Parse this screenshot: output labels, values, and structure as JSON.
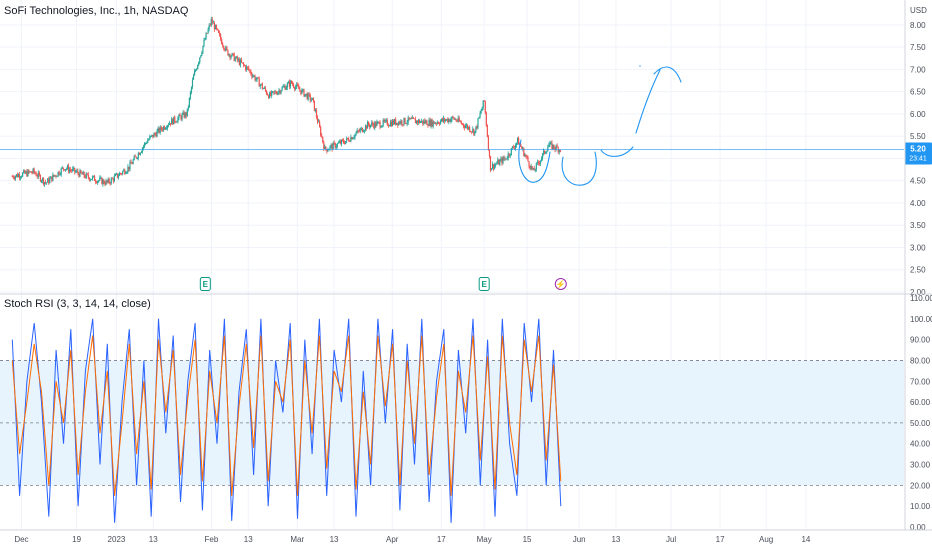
{
  "price_pane": {
    "symbol_line": "SoFi Technologies, Inc., 1h, NASDAQ",
    "currency": "USD",
    "last_price": "5.20",
    "countdown": "23:41",
    "earnings_marker": "E",
    "dividend_marker": "⚡"
  },
  "indicator_pane": {
    "title": "Stoch RSI (3, 3, 14, 14, close)"
  },
  "colors": {
    "up": "#26a69a",
    "down": "#ef5350",
    "k_line": "#2962ff",
    "d_line": "#ff6d00",
    "band_fill": "#e3f2fd",
    "drawing": "#2196f3",
    "price_line": "#2196f3",
    "badge": "#2196f3",
    "earnings": "#089981",
    "dividend": "#9c27b0"
  },
  "chart_data": [
    {
      "type": "candlestick",
      "title": "SoFi Technologies, Inc., 1h, NASDAQ",
      "ylabel": "USD",
      "ylim": [
        2.0,
        8.2
      ],
      "y_ticks": [
        "8.00",
        "7.50",
        "7.00",
        "6.50",
        "6.00",
        "5.50",
        "5.00",
        "4.50",
        "4.00",
        "3.50",
        "3.00",
        "2.50",
        "2.00"
      ],
      "x_ticks": [
        "Dec",
        "19",
        "2023",
        "13",
        "Feb",
        "13",
        "Mar",
        "13",
        "Apr",
        "17",
        "May",
        "15",
        "Jun",
        "13",
        "Jul",
        "17",
        "Aug",
        "14"
      ],
      "grid": true,
      "close_path": [
        [
          "2022-11-28",
          4.6
        ],
        [
          "2022-12-05",
          4.7
        ],
        [
          "2022-12-09",
          4.45
        ],
        [
          "2022-12-15",
          4.8
        ],
        [
          "2022-12-22",
          4.6
        ],
        [
          "2022-12-29",
          4.45
        ],
        [
          "2023-01-05",
          4.8
        ],
        [
          "2023-01-11",
          5.4
        ],
        [
          "2023-01-18",
          5.8
        ],
        [
          "2023-01-24",
          6.0
        ],
        [
          "2023-01-26",
          6.8
        ],
        [
          "2023-01-30",
          7.7
        ],
        [
          "2023-02-01",
          8.1
        ],
        [
          "2023-02-06",
          7.4
        ],
        [
          "2023-02-13",
          7.0
        ],
        [
          "2023-02-20",
          6.4
        ],
        [
          "2023-02-27",
          6.7
        ],
        [
          "2023-03-06",
          6.3
        ],
        [
          "2023-03-10",
          5.2
        ],
        [
          "2023-03-17",
          5.4
        ],
        [
          "2023-03-24",
          5.75
        ],
        [
          "2023-03-31",
          5.8
        ],
        [
          "2023-04-07",
          5.85
        ],
        [
          "2023-04-14",
          5.8
        ],
        [
          "2023-04-21",
          5.9
        ],
        [
          "2023-04-28",
          5.6
        ],
        [
          "2023-05-01",
          6.3
        ],
        [
          "2023-05-03",
          4.8
        ],
        [
          "2023-05-08",
          5.0
        ],
        [
          "2023-05-12",
          5.4
        ],
        [
          "2023-05-17",
          4.7
        ],
        [
          "2023-05-22",
          5.3
        ],
        [
          "2023-05-26",
          5.2
        ]
      ],
      "last_value": 5.2,
      "horizontal_line": 5.2,
      "event_markers": [
        {
          "label": "E",
          "date": "2023-01-30"
        },
        {
          "label": "E",
          "date": "2023-05-01"
        },
        {
          "label": "⚡",
          "date": "2023-05-26"
        }
      ]
    },
    {
      "type": "line",
      "title": "Stoch RSI (3, 3, 14, 14, close)",
      "ylim": [
        0,
        110
      ],
      "y_ticks": [
        "110.00",
        "100.00",
        "90.00",
        "80.00",
        "70.00",
        "60.00",
        "50.00",
        "40.00",
        "30.00",
        "20.00",
        "10.00",
        "0.00"
      ],
      "bands": {
        "upper": 80,
        "middle": 50,
        "lower": 20
      },
      "series": [
        {
          "name": "%K",
          "values": [
            90,
            15,
            70,
            98,
            60,
            5,
            85,
            40,
            95,
            10,
            75,
            100,
            30,
            88,
            2,
            60,
            95,
            20,
            80,
            5,
            100,
            45,
            92,
            12,
            70,
            98,
            8,
            85,
            40,
            100,
            3,
            65,
            95,
            25,
            100,
            10,
            80,
            55,
            98,
            4,
            90,
            35,
            100,
            15,
            85,
            60,
            100,
            5,
            75,
            20,
            100,
            50,
            95,
            8,
            88,
            30,
            100,
            12,
            70,
            95,
            2,
            85,
            45,
            100,
            20,
            90,
            5,
            100,
            40,
            15,
            98,
            60,
            100,
            20,
            85,
            10
          ]
        },
        {
          "name": "%D",
          "values": [
            80,
            35,
            60,
            88,
            65,
            20,
            70,
            50,
            85,
            25,
            65,
            92,
            45,
            75,
            15,
            50,
            88,
            35,
            70,
            18,
            90,
            55,
            85,
            25,
            62,
            90,
            22,
            75,
            50,
            92,
            15,
            58,
            88,
            38,
            92,
            22,
            70,
            60,
            90,
            15,
            80,
            45,
            92,
            28,
            75,
            65,
            92,
            18,
            65,
            30,
            92,
            58,
            88,
            20,
            80,
            40,
            92,
            25,
            62,
            88,
            15,
            75,
            55,
            92,
            32,
            82,
            18,
            92,
            50,
            25,
            90,
            65,
            92,
            32,
            78,
            22
          ]
        }
      ]
    }
  ]
}
